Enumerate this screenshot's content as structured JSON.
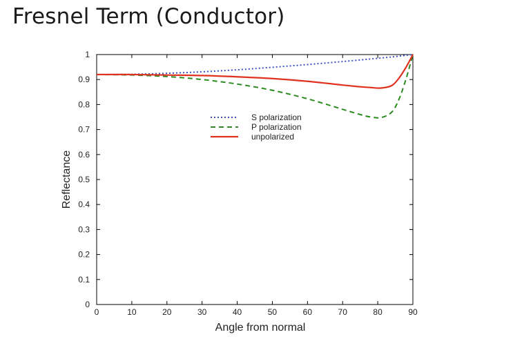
{
  "slide": {
    "title": "Fresnel Term (Conductor)"
  },
  "chart_data": {
    "type": "line",
    "title": "",
    "xlabel": "Angle from normal",
    "ylabel": "Reflectance",
    "xlim": [
      0,
      90
    ],
    "ylim": [
      0,
      1
    ],
    "x_ticks": [
      0,
      10,
      20,
      30,
      40,
      50,
      60,
      70,
      80,
      90
    ],
    "y_ticks": [
      0,
      0.1,
      0.2,
      0.3,
      0.4,
      0.5,
      0.6,
      0.7,
      0.8,
      0.9,
      1
    ],
    "legend_position": "center-right",
    "series": [
      {
        "name": "S polarization",
        "style": "dotted",
        "color": "#3a4fc4",
        "x": [
          0,
          10,
          20,
          30,
          40,
          50,
          60,
          70,
          80,
          85,
          90
        ],
        "y": [
          0.92,
          0.921,
          0.925,
          0.931,
          0.939,
          0.949,
          0.96,
          0.972,
          0.985,
          0.992,
          1.0
        ]
      },
      {
        "name": "P polarization",
        "style": "dashed",
        "color": "#2a8a1e",
        "x": [
          0,
          10,
          20,
          30,
          40,
          50,
          60,
          70,
          75,
          78,
          81,
          84,
          86,
          88,
          90
        ],
        "y": [
          0.92,
          0.918,
          0.912,
          0.9,
          0.882,
          0.857,
          0.823,
          0.781,
          0.76,
          0.75,
          0.748,
          0.77,
          0.82,
          0.9,
          1.0
        ]
      },
      {
        "name": "unpolarized",
        "style": "solid",
        "color": "#e0301e",
        "x": [
          0,
          10,
          20,
          30,
          40,
          50,
          60,
          70,
          75,
          78,
          81,
          84,
          86,
          88,
          90
        ],
        "y": [
          0.92,
          0.92,
          0.918,
          0.916,
          0.911,
          0.904,
          0.893,
          0.878,
          0.871,
          0.868,
          0.866,
          0.876,
          0.905,
          0.948,
          1.0
        ]
      }
    ]
  }
}
